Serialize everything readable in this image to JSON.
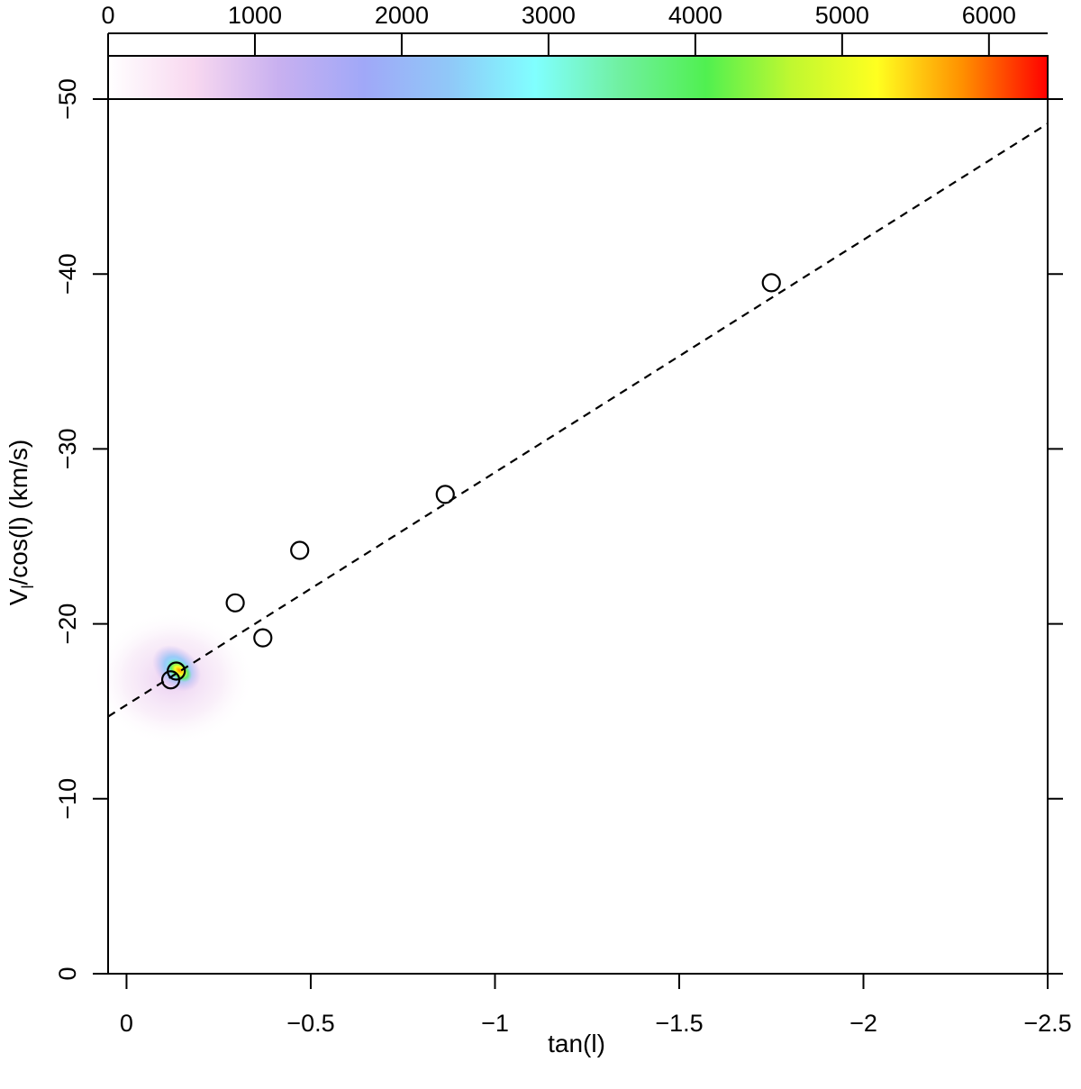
{
  "chart_data": {
    "type": "scatter",
    "title": "",
    "xlabel": "tan(l)",
    "ylabel_main": "V",
    "ylabel_sub": "l",
    "ylabel_rest": "/cos(l) (km/s)",
    "xlim": [
      0.05,
      -2.5
    ],
    "ylim": [
      -50,
      0
    ],
    "x_ticks": [
      0,
      -0.5,
      -1,
      -1.5,
      -2,
      -2.5
    ],
    "x_tick_labels": [
      "0",
      "−0.5",
      "−1",
      "−1.5",
      "−2",
      "−2.5"
    ],
    "y_ticks": [
      0,
      -10,
      -20,
      -30,
      -40,
      -50
    ],
    "y_tick_labels": [
      "0",
      "−10",
      "−20",
      "−30",
      "−40",
      "−50"
    ],
    "colorbar": {
      "range": [
        0,
        6400
      ],
      "ticks": [
        0,
        1000,
        2000,
        3000,
        4000,
        5000,
        6000
      ],
      "tick_labels": [
        "0",
        "1000",
        "2000",
        "3000",
        "4000",
        "5000",
        "6000"
      ],
      "colors": [
        "#ffffff",
        "#f8d8f0",
        "#c8b0f0",
        "#a0a8f8",
        "#90c8f8",
        "#80ffff",
        "#70f0a0",
        "#50f050",
        "#c0f830",
        "#ffff20",
        "#ff9000",
        "#ff0000"
      ]
    },
    "points": [
      {
        "x": -0.12,
        "y": -16.8
      },
      {
        "x": -0.135,
        "y": -17.3
      },
      {
        "x": -0.295,
        "y": -21.2
      },
      {
        "x": -0.37,
        "y": -19.2
      },
      {
        "x": -0.47,
        "y": -24.2
      },
      {
        "x": -0.865,
        "y": -27.4
      },
      {
        "x": -1.75,
        "y": -39.5
      }
    ],
    "fit_line": {
      "x": [
        0.05,
        -2.5
      ],
      "y": [
        -14.7,
        -48.6
      ]
    },
    "density_blob": {
      "x_center": -0.14,
      "y_center": -17.4
    }
  }
}
